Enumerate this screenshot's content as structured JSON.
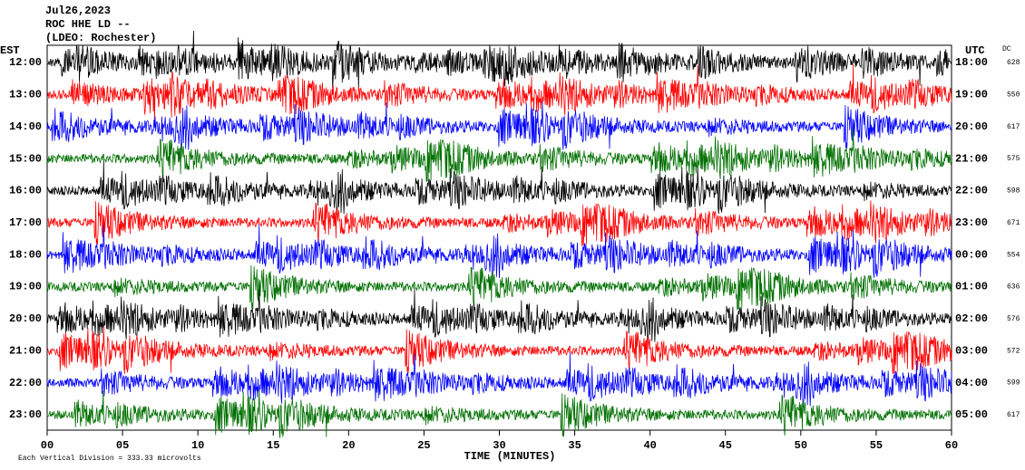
{
  "chart_data": {
    "type": "helicorder",
    "title": "Jul26,2023",
    "station": "ROC HHE LD --",
    "location": "(LDEO: Rochester)",
    "left_axis_label": "EST",
    "right_axis_label": "UTC",
    "dc_label": "DC",
    "xlabel": "TIME (MINUTES)",
    "note": "Each Vertical Division =  333.33 microvolts",
    "xlim": [
      0,
      60
    ],
    "xticks": [
      {
        "value": 0,
        "label": "00"
      },
      {
        "value": 5,
        "label": "05"
      },
      10,
      15,
      20,
      25,
      30,
      35,
      40,
      45,
      50,
      55,
      60
    ],
    "traces": [
      {
        "est": "12:00",
        "utc": "18:00",
        "dc": 628,
        "color": "#000000"
      },
      {
        "est": "13:00",
        "utc": "19:00",
        "dc": 550,
        "color": "#ff0000"
      },
      {
        "est": "14:00",
        "utc": "20:00",
        "dc": 617,
        "color": "#0000ff"
      },
      {
        "est": "15:00",
        "utc": "21:00",
        "dc": 575,
        "color": "#007000"
      },
      {
        "est": "16:00",
        "utc": "22:00",
        "dc": 598,
        "color": "#000000"
      },
      {
        "est": "17:00",
        "utc": "23:00",
        "dc": 671,
        "color": "#ff0000"
      },
      {
        "est": "18:00",
        "utc": "00:00",
        "dc": 554,
        "color": "#0000ff"
      },
      {
        "est": "19:00",
        "utc": "01:00",
        "dc": 636,
        "color": "#007000"
      },
      {
        "est": "20:00",
        "utc": "02:00",
        "dc": 576,
        "color": "#000000"
      },
      {
        "est": "21:00",
        "utc": "03:00",
        "dc": 572,
        "color": "#ff0000"
      },
      {
        "est": "22:00",
        "utc": "04:00",
        "dc": 599,
        "color": "#0000ff"
      },
      {
        "est": "23:00",
        "utc": "05:00",
        "dc": 617,
        "color": "#007000"
      }
    ]
  }
}
